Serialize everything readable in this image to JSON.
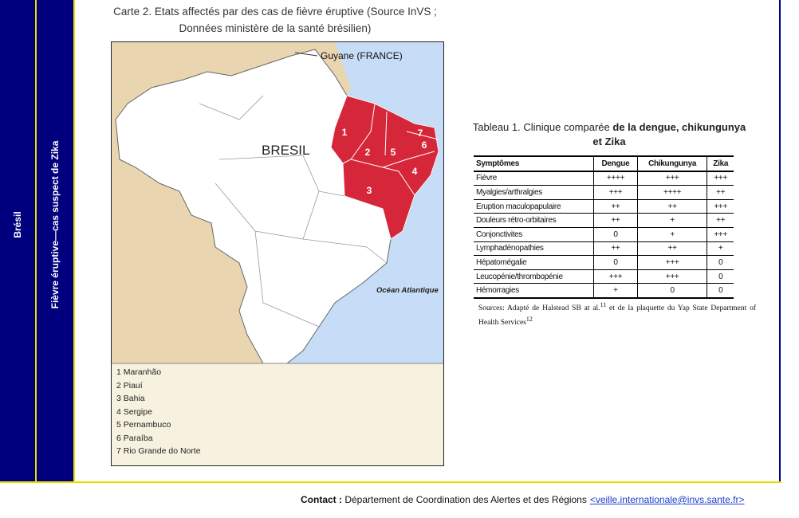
{
  "sidebar": {
    "country": "Brésil",
    "topic": "Fièvre éruptive—cas suspect de Zika"
  },
  "map": {
    "caption_lines": [
      "Carte 2. Etats affectés par des cas de fièvre éruptive (Source InVS ;",
      "Données ministère de la santé brésilien)"
    ],
    "labels": {
      "guyane": "Guyane (FRANCE)",
      "country": "BRESIL",
      "ocean": "Océan Atlantique"
    },
    "state_numbers": [
      "1",
      "2",
      "3",
      "4",
      "5",
      "6",
      "7"
    ],
    "legend": [
      "1 Maranhão",
      "2 Piauí",
      "3 Bahia",
      "4 Sergipe",
      "5 Pernambuco",
      "6 Paraíba",
      "7 Rio Grande do Norte"
    ]
  },
  "table": {
    "title_prefix": "Tableau 1. Clinique comparée",
    "title_bold": "de la dengue, chikungunya et Zika",
    "header": [
      "Symptômes",
      "Dengue",
      "Chikungunya",
      "Zika"
    ],
    "rows": [
      [
        "Fièvre",
        "++++",
        "+++",
        "+++"
      ],
      [
        "Myalgies/arthralgies",
        "+++",
        "++++",
        "++"
      ],
      [
        "Eruption maculopapulaire",
        "++",
        "++",
        "+++"
      ],
      [
        "Douleurs rétro-orbitaires",
        "++",
        "+",
        "++"
      ],
      [
        "Conjonctivites",
        "0",
        "+",
        "+++"
      ],
      [
        "Lymphadénopathies",
        "++",
        "++",
        "+"
      ],
      [
        "Hépatomégalie",
        "0",
        "+++",
        "0"
      ],
      [
        "Leucopénie/thrombopénie",
        "+++",
        "+++",
        "0"
      ],
      [
        "Hémorragies",
        "+",
        "0",
        "0"
      ]
    ],
    "sources": {
      "text1": "Sources: Adapté de Halstead SB at al.",
      "ref1": "11",
      "text2": " et de la plaquette du Yap State Department of Health Services",
      "ref2": "12"
    }
  },
  "footer": {
    "label": "Contact :",
    "text": "Département de Coordination des Alertes et des Régions",
    "email": "<veille.internationale@invs.sante.fr>"
  }
}
